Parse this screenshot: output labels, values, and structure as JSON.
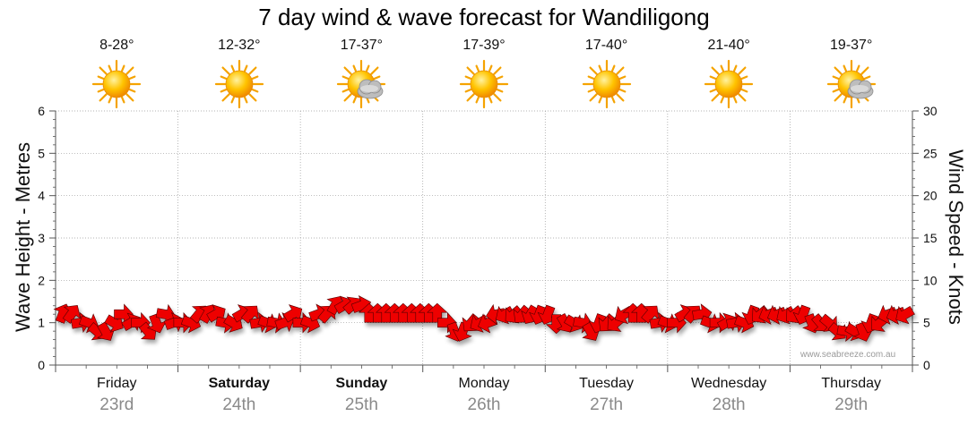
{
  "title": "7 day wind & wave forecast for Wandiligong",
  "days": [
    {
      "name": "Friday",
      "date": "23rd",
      "temp": "8-28°",
      "icon": "sun-icon",
      "bold": false
    },
    {
      "name": "Saturday",
      "date": "24th",
      "temp": "12-32°",
      "icon": "sun-icon",
      "bold": true
    },
    {
      "name": "Sunday",
      "date": "25th",
      "temp": "17-37°",
      "icon": "sun-cloud-icon",
      "bold": true
    },
    {
      "name": "Monday",
      "date": "26th",
      "temp": "17-39°",
      "icon": "sun-icon",
      "bold": false
    },
    {
      "name": "Tuesday",
      "date": "27th",
      "temp": "17-40°",
      "icon": "sun-icon",
      "bold": false
    },
    {
      "name": "Wednesday",
      "date": "28th",
      "temp": "21-40°",
      "icon": "sun-icon",
      "bold": false
    },
    {
      "name": "Thursday",
      "date": "29th",
      "temp": "19-37°",
      "icon": "sun-cloud-icon",
      "bold": false
    }
  ],
  "watermark": "www.seabreeze.com.au",
  "colors": {
    "arrow_fill": "#ee0000",
    "arrow_stroke": "#550000",
    "grid": "#9a9a9a",
    "axis": "#555555"
  },
  "chart_data": {
    "type": "line",
    "ylabel": "Wave Height - Metres",
    "ylabel_right": "Wind Speed - Knots",
    "ylim": [
      0,
      6
    ],
    "ylim_right": [
      0,
      30
    ],
    "yticks": [
      "0",
      "1",
      "2",
      "3",
      "4",
      "5",
      "6"
    ],
    "yticks_right": [
      "0",
      "5",
      "10",
      "15",
      "20",
      "25",
      "30"
    ],
    "x_categories": [
      "Friday 23rd",
      "Saturday 24th",
      "Sunday 25th",
      "Monday 26th",
      "Tuesday 27th",
      "Wednesday 28th",
      "Thursday 29th"
    ],
    "series": [
      {
        "name": "Wind",
        "speed_knots": [
          6,
          6,
          5,
          5,
          4,
          4,
          5,
          6,
          5,
          5,
          4,
          5,
          6,
          5,
          5,
          5,
          6,
          6,
          6,
          5,
          5,
          6,
          6,
          5,
          5,
          5,
          5,
          6,
          5,
          5,
          6,
          6,
          7,
          7,
          7,
          7,
          6,
          6,
          6,
          6,
          6,
          6,
          6,
          6,
          6,
          5,
          4,
          4,
          5,
          5,
          5,
          6,
          6,
          6,
          6,
          6,
          6,
          6,
          5,
          5,
          5,
          5,
          4,
          5,
          5,
          5,
          6,
          6,
          6,
          6,
          5,
          5,
          5,
          6,
          6,
          6,
          5,
          5,
          5,
          5,
          5,
          6,
          6,
          6,
          6,
          6,
          6,
          6,
          5,
          5,
          5,
          4,
          4,
          4,
          4,
          5,
          5,
          6,
          6,
          6
        ],
        "direction_deg": [
          20,
          35,
          80,
          110,
          130,
          150,
          120,
          90,
          60,
          90,
          140,
          160,
          100,
          70,
          90,
          110,
          40,
          30,
          60,
          100,
          120,
          60,
          40,
          80,
          110,
          100,
          70,
          60,
          90,
          110,
          70,
          40,
          30,
          60,
          50,
          70,
          0,
          0,
          0,
          0,
          0,
          0,
          0,
          0,
          0,
          90,
          160,
          200,
          220,
          240,
          250,
          260,
          240,
          230,
          220,
          210,
          200,
          200,
          180,
          150,
          120,
          100,
          150,
          200,
          220,
          230,
          240,
          0,
          0,
          40,
          80,
          110,
          90,
          60,
          40,
          80,
          110,
          90,
          60,
          80,
          110,
          200,
          230,
          250,
          250,
          240,
          230,
          200,
          160,
          140,
          130,
          130,
          100,
          120,
          160,
          200,
          230,
          250,
          250,
          240
        ]
      }
    ]
  }
}
